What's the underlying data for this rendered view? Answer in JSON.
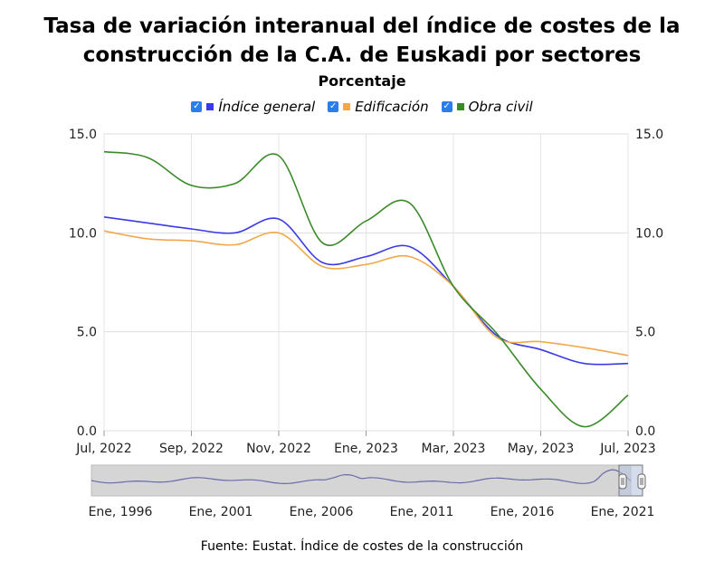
{
  "header": {
    "title_line1": "Tasa de variación interanual del índice de costes de la",
    "title_line2": "construcción de la C.A. de Euskadi por sectores",
    "subtitle": "Porcentaje"
  },
  "legend": [
    {
      "label": "Índice general",
      "color": "#3b3be6",
      "checked": true
    },
    {
      "label": "Edificación",
      "color": "#f0a94a",
      "checked": true
    },
    {
      "label": "Obra civil",
      "color": "#3a8a2a",
      "checked": true
    }
  ],
  "footer": {
    "source": "Fuente: Eustat. Índice de costes de la construcción"
  },
  "chart_data": {
    "type": "line",
    "title": "Tasa de variación interanual del índice de costes de la construcción de la C.A. de Euskadi por sectores",
    "subtitle": "Porcentaje",
    "x": [
      "Jul, 2022",
      "Ago, 2022",
      "Sep, 2022",
      "Oct, 2022",
      "Nov, 2022",
      "Dic, 2022",
      "Ene, 2023",
      "Feb, 2023",
      "Mar, 2023",
      "Abr, 2023",
      "May, 2023",
      "Jun, 2023",
      "Jul, 2023"
    ],
    "x_tick_labels": [
      "Jul, 2022",
      "Sep, 2022",
      "Nov, 2022",
      "Ene, 2023",
      "Mar, 2023",
      "May, 2023",
      "Jul, 2023"
    ],
    "ylim": [
      0,
      15
    ],
    "y_ticks": [
      "0.0",
      "5.0",
      "10.0",
      "15.0"
    ],
    "grid": true,
    "legend_position": "top",
    "series": [
      {
        "name": "Índice general",
        "color": "#3b3be6",
        "values": [
          10.8,
          10.5,
          10.2,
          10.0,
          10.7,
          8.5,
          8.8,
          9.3,
          7.3,
          4.8,
          4.1,
          3.4,
          3.4
        ]
      },
      {
        "name": "Edificación",
        "color": "#f0a94a",
        "values": [
          10.1,
          9.7,
          9.6,
          9.4,
          10.0,
          8.3,
          8.4,
          8.8,
          7.3,
          4.7,
          4.5,
          4.2,
          3.8
        ]
      },
      {
        "name": "Obra civil",
        "color": "#3a8a2a",
        "values": [
          14.1,
          13.8,
          12.4,
          12.5,
          13.9,
          9.5,
          10.6,
          11.5,
          7.3,
          4.9,
          2.1,
          0.2,
          1.8
        ]
      }
    ],
    "navigator": {
      "tick_labels": [
        "Ene, 1996",
        "Ene, 2001",
        "Ene, 2006",
        "Ene, 2011",
        "Ene, 2016",
        "Ene, 2021"
      ]
    }
  }
}
